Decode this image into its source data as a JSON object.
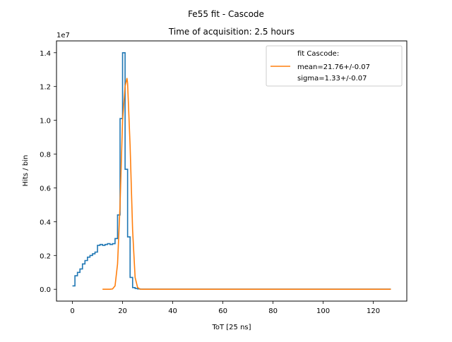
{
  "chart_data": {
    "type": "line",
    "title": "Fe55 fit - Cascode",
    "subtitle": "Time of acquisition: 2.5 hours",
    "xlabel": "ToT [25 ns]",
    "ylabel": "Hits / bin",
    "y_offset_label": "1e7",
    "xlim": [
      -6.35,
      133.35
    ],
    "ylim": [
      -0.07,
      1.47
    ],
    "x_ticks": [
      0,
      20,
      40,
      60,
      80,
      100,
      120
    ],
    "y_ticks": [
      0.0,
      0.2,
      0.4,
      0.6,
      0.8,
      1.0,
      1.2,
      1.4
    ],
    "y_tick_labels": [
      "0.0",
      "0.2",
      "0.4",
      "0.6",
      "0.8",
      "1.0",
      "1.2",
      "1.4"
    ],
    "grid": false,
    "legend_position": "top-right",
    "legend": {
      "title": "fit Cascode:",
      "entries": [
        "mean=21.76+/-0.07",
        "sigma=1.33+/-0.07"
      ]
    },
    "series": [
      {
        "style": "step",
        "color": "#1f77b4",
        "x": [
          0,
          1,
          2,
          3,
          4,
          5,
          6,
          7,
          8,
          9,
          10,
          11,
          12,
          13,
          14,
          15,
          16,
          17,
          18,
          19,
          20,
          21,
          22,
          23,
          24,
          25,
          26,
          27,
          28,
          29,
          30,
          40,
          60,
          80,
          100,
          127
        ],
        "values": [
          0.02,
          0.08,
          0.1,
          0.12,
          0.15,
          0.17,
          0.19,
          0.2,
          0.21,
          0.22,
          0.26,
          0.265,
          0.26,
          0.265,
          0.27,
          0.265,
          0.27,
          0.3,
          0.44,
          1.01,
          1.4,
          0.71,
          0.31,
          0.07,
          0.01,
          0.005,
          0.002,
          0.001,
          0.001,
          0.001,
          0.001,
          0.001,
          0.001,
          0.001,
          0.001,
          0.001
        ]
      },
      {
        "style": "line",
        "color": "#ff7f0e",
        "x": [
          12,
          13,
          14,
          15,
          16,
          17,
          18,
          19,
          20,
          21,
          21.76,
          22,
          23,
          24,
          25,
          26,
          27,
          28,
          30,
          40,
          60,
          80,
          100,
          127
        ],
        "values": [
          0.0,
          0.0,
          0.0,
          0.0,
          0.002,
          0.02,
          0.15,
          0.5,
          1.0,
          1.2,
          1.25,
          1.22,
          0.85,
          0.35,
          0.07,
          0.01,
          0.001,
          0.0,
          0.0,
          0.0,
          0.0,
          0.0,
          0.0,
          0.0
        ]
      }
    ]
  }
}
